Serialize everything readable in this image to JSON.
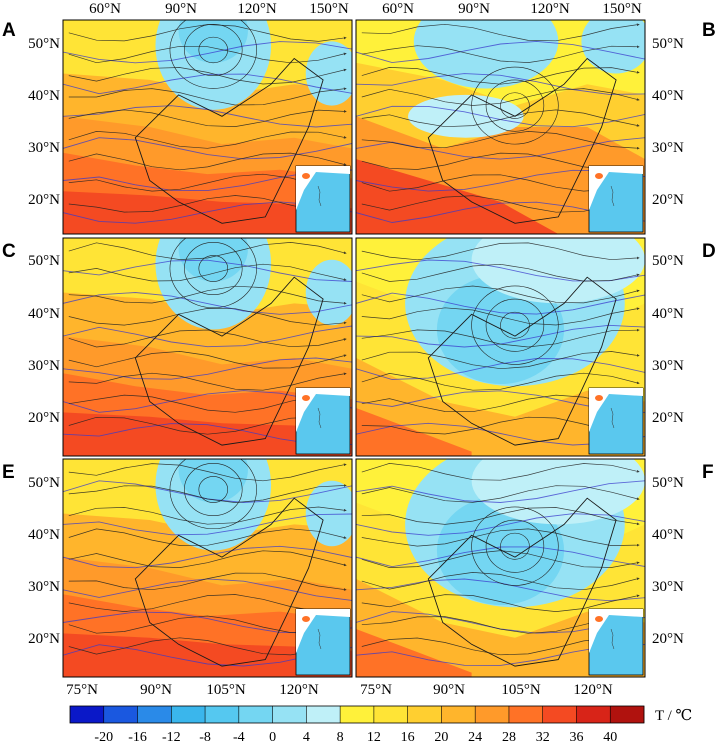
{
  "figure": {
    "top_axis_labels": [
      "60°N",
      "90°N",
      "120°N",
      "150°N"
    ],
    "bottom_axis_labels": [
      "75°N",
      "90°N",
      "105°N",
      "120°N"
    ],
    "left_axis_labels": [
      "50°N",
      "40°N",
      "30°N",
      "20°N"
    ],
    "right_axis_labels": [
      "50°N",
      "40°N",
      "30°N",
      "20°N"
    ],
    "panels": [
      {
        "label": "A",
        "regime": "warm"
      },
      {
        "label": "B",
        "regime": "mixed"
      },
      {
        "label": "C",
        "regime": "warm"
      },
      {
        "label": "D",
        "regime": "cold"
      },
      {
        "label": "E",
        "regime": "warm"
      },
      {
        "label": "F",
        "regime": "cold"
      }
    ],
    "colorbar": {
      "ticks": [
        "-20",
        "-16",
        "-12",
        "-8",
        "-4",
        "0",
        "4",
        "8",
        "12",
        "16",
        "20",
        "24",
        "28",
        "32",
        "36",
        "40"
      ],
      "unit_label": "T / ℃",
      "colors": [
        "#0a18c8",
        "#1a58e0",
        "#2a8ae8",
        "#3ab6ec",
        "#55c8f0",
        "#74d6f2",
        "#96e2f4",
        "#bff0f8",
        "#fff13a",
        "#ffe436",
        "#ffcf30",
        "#ffb52c",
        "#ff9a2a",
        "#ff7226",
        "#f44a22",
        "#d82418",
        "#b0120e"
      ]
    },
    "colors": {
      "land_line": "#1a1a1a",
      "isotherm": "#3a3acc",
      "inset_sea": "#5ac8ee",
      "inset_land": "#ffffff"
    }
  }
}
